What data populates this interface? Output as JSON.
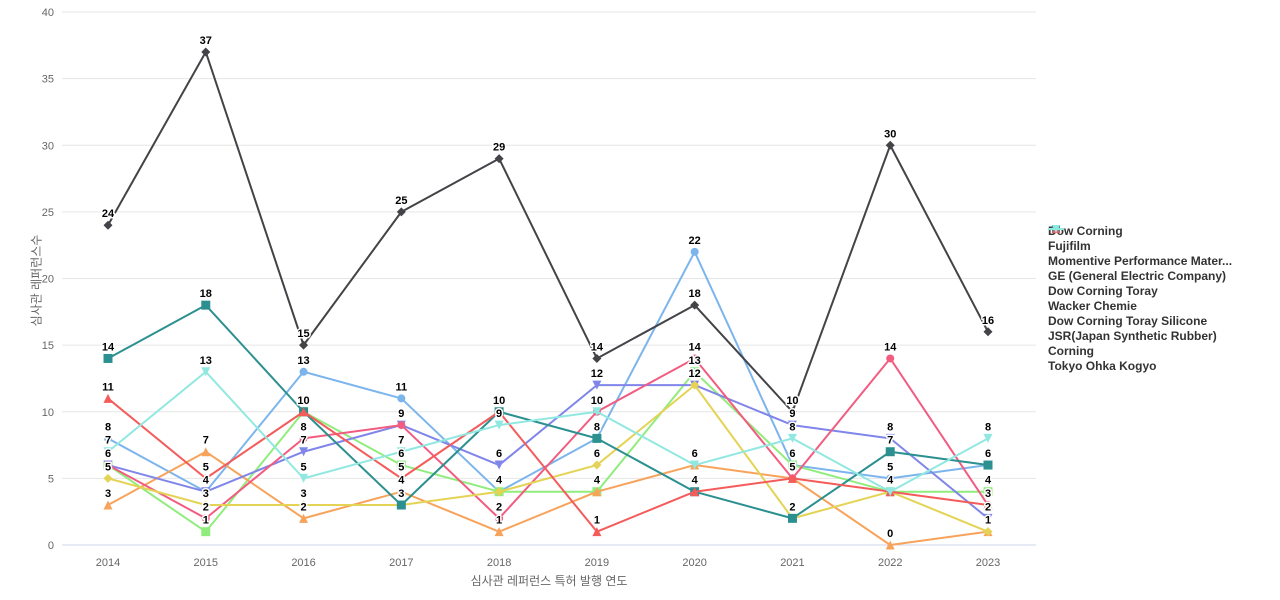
{
  "chart_data": {
    "type": "line",
    "x": [
      "2014",
      "2015",
      "2016",
      "2017",
      "2018",
      "2019",
      "2020",
      "2021",
      "2022",
      "2023"
    ],
    "series": [
      {
        "name": "Dow Corning",
        "color": "#7cb5ec",
        "marker": "circle",
        "values": [
          8,
          4,
          13,
          11,
          4,
          8,
          22,
          6,
          5,
          6
        ]
      },
      {
        "name": "Fujifilm",
        "color": "#434348",
        "marker": "diamond",
        "values": [
          24,
          37,
          15,
          25,
          29,
          14,
          18,
          10,
          30,
          16
        ]
      },
      {
        "name": "Momentive Performance Mater...",
        "color": "#90ed7d",
        "marker": "square",
        "values": [
          6,
          1,
          10,
          6,
          4,
          4,
          13,
          6,
          4,
          4
        ]
      },
      {
        "name": "GE (General Electric Company)",
        "color": "#f7a35c",
        "marker": "triangle",
        "values": [
          3,
          7,
          2,
          4,
          1,
          4,
          6,
          5,
          0,
          1
        ]
      },
      {
        "name": "Dow Corning Toray",
        "color": "#8085e9",
        "marker": "triangle-down",
        "values": [
          6,
          4,
          7,
          9,
          6,
          12,
          12,
          9,
          8,
          2
        ]
      },
      {
        "name": "Wacker Chemie",
        "color": "#f15c80",
        "marker": "circle",
        "values": [
          6,
          2,
          8,
          9,
          2,
          10,
          14,
          5,
          14,
          3
        ]
      },
      {
        "name": "Dow Corning Toray Silicone",
        "color": "#e4d354",
        "marker": "diamond",
        "values": [
          5,
          3,
          3,
          3,
          4,
          6,
          12,
          2,
          4,
          1
        ]
      },
      {
        "name": "JSR(Japan Synthetic Rubber)",
        "color": "#2b908f",
        "marker": "square",
        "values": [
          14,
          18,
          10,
          3,
          10,
          8,
          4,
          2,
          7,
          6
        ]
      },
      {
        "name": "Corning",
        "color": "#f45b5b",
        "marker": "triangle",
        "values": [
          11,
          5,
          10,
          5,
          10,
          1,
          4,
          5,
          4,
          3
        ]
      },
      {
        "name": "Tokyo Ohka Kogyo",
        "color": "#91e8e1",
        "marker": "triangle-down",
        "values": [
          7,
          13,
          5,
          7,
          9,
          10,
          6,
          8,
          4,
          8
        ]
      }
    ],
    "yticks": [
      0,
      5,
      10,
      15,
      20,
      25,
      30,
      35,
      40
    ],
    "ylim": [
      0,
      40
    ],
    "ylabel": "심사관 레퍼런스수",
    "xlabel": "심사관 레퍼런스 특허 발행 연도",
    "grid": true,
    "legend_position": "right",
    "colors": {
      "gridline": "#e6e6e6",
      "axis_line": "#ccd6eb",
      "tick_text": "#666666",
      "legend_text": "#333333",
      "data_label": "#000000",
      "background": "#ffffff"
    }
  }
}
